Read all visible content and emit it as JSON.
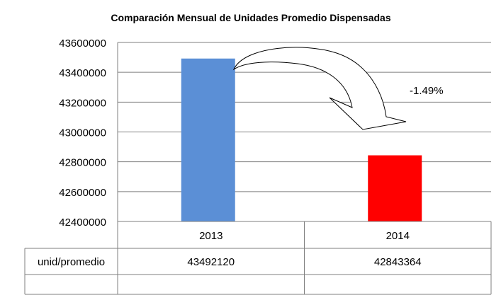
{
  "chart_data": {
    "type": "bar",
    "title": "Comparación Mensual de Unidades Promedio Dispensadas",
    "categories": [
      "2013",
      "2014"
    ],
    "series": [
      {
        "name": "unid/promedio",
        "values": [
          43492120,
          42843364
        ],
        "colors": [
          "#5B8FD6",
          "#FF0000"
        ]
      }
    ],
    "ylim": [
      42400000,
      43600000
    ],
    "yticks": [
      "43600000",
      "43400000",
      "43200000",
      "43000000",
      "42800000",
      "42600000",
      "42400000"
    ],
    "grid": true,
    "data_table": {
      "row_label": "unid/promedio",
      "values": [
        "43492120",
        "42843364"
      ]
    },
    "annotation": {
      "text": "-1.49%",
      "shape": "curved-arrow",
      "from": "2013",
      "to": "2014"
    }
  }
}
